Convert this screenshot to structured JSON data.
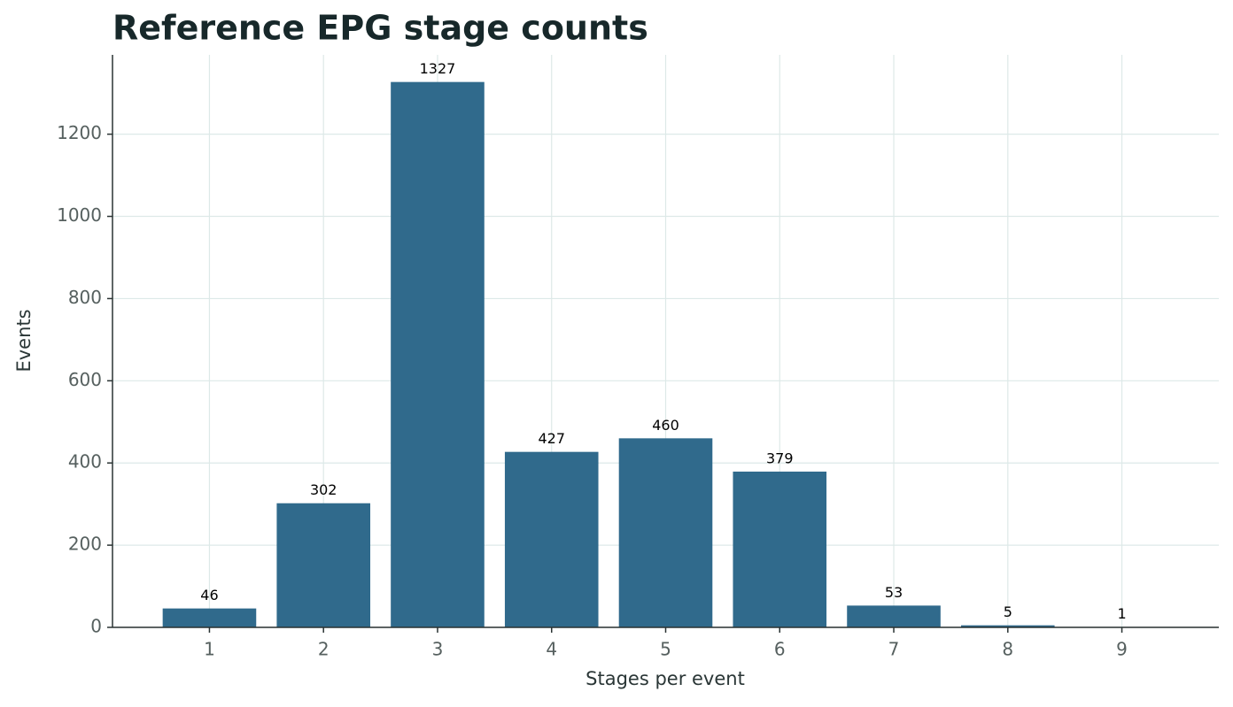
{
  "chart_data": {
    "type": "bar",
    "title": "Reference EPG stage counts",
    "x_label": "Stages per event",
    "y_label": "Events",
    "x": [
      1,
      2,
      3,
      4,
      5,
      6,
      7,
      8,
      9
    ],
    "values": [
      46,
      302,
      1327,
      427,
      460,
      379,
      53,
      5,
      1
    ],
    "color": "#306a8c",
    "xlim": [
      0.15,
      9.85
    ],
    "xticks": [
      1,
      2,
      3,
      4,
      5,
      6,
      7,
      8,
      9
    ],
    "ylim": [
      0,
      1393
    ],
    "yticks": [
      0,
      200,
      400,
      600,
      800,
      1000,
      1200
    ],
    "grid": true
  }
}
